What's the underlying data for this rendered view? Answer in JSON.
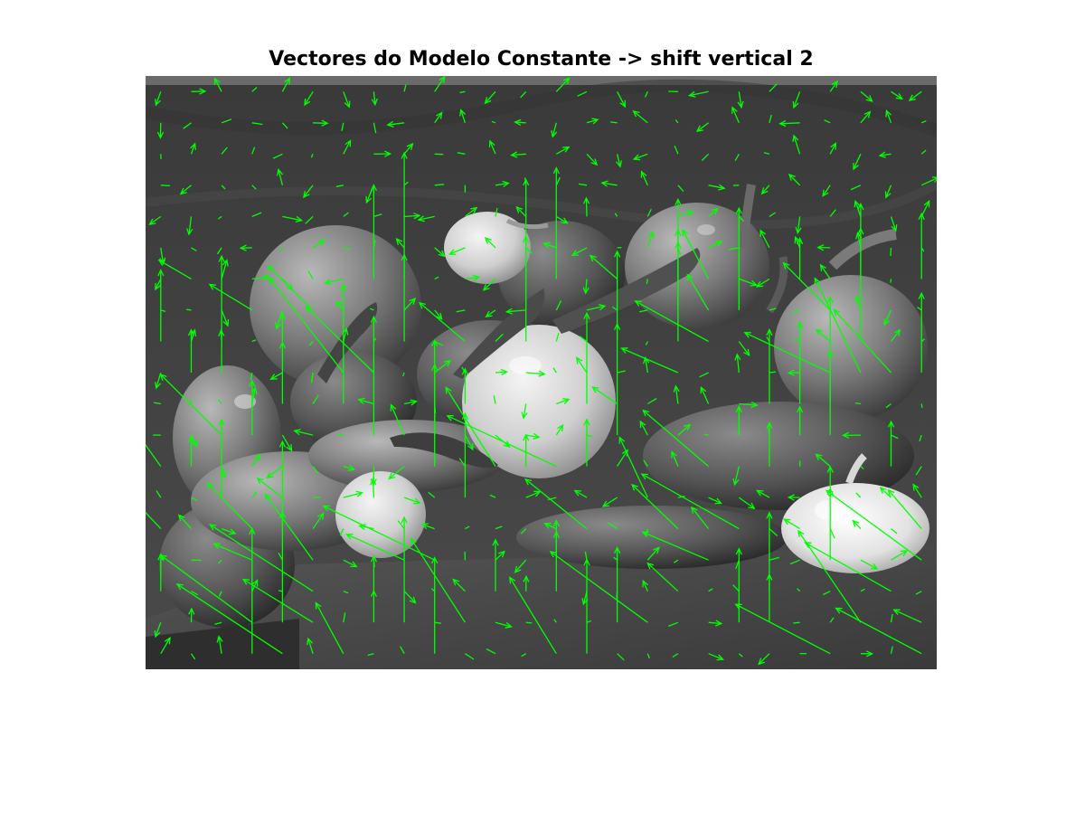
{
  "figure": {
    "title": "Vectores do Modelo Constante -> shift vertical 2"
  },
  "image": {
    "content": "grayscale photograph of bell peppers, chili peppers, an onion and a garlic bulb on a dark draped cloth",
    "colormap": "gray"
  },
  "overlay": {
    "type": "quiver",
    "color": "#00ff00",
    "grid_columns": 26,
    "grid_rows": 19
  }
}
